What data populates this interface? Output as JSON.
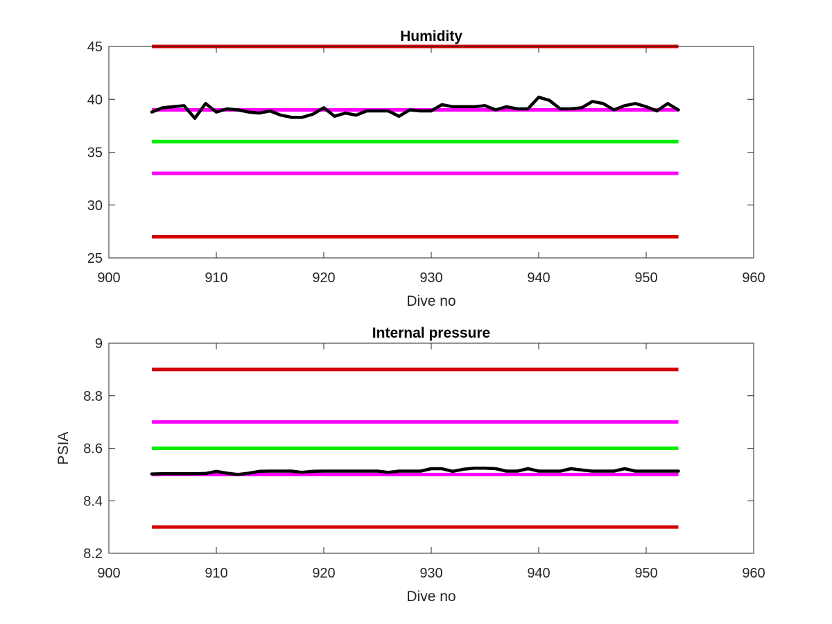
{
  "chart_data": [
    {
      "type": "line",
      "title": "Humidity",
      "xlabel": "Dive no",
      "ylabel": "",
      "xlim": [
        900,
        960
      ],
      "ylim": [
        25,
        45
      ],
      "xticks": [
        900,
        910,
        920,
        930,
        940,
        950,
        960
      ],
      "yticks": [
        25,
        30,
        35,
        40,
        45
      ],
      "grid": false,
      "reference_lines": [
        {
          "y": 45,
          "x": [
            904,
            953
          ],
          "color": "#d40000"
        },
        {
          "y": 39,
          "x": [
            904,
            953
          ],
          "color": "#ff00ff"
        },
        {
          "y": 36,
          "x": [
            904,
            953
          ],
          "color": "#00ee00"
        },
        {
          "y": 33,
          "x": [
            904,
            953
          ],
          "color": "#ff00ff"
        },
        {
          "y": 27,
          "x": [
            904,
            953
          ],
          "color": "#d40000"
        }
      ],
      "series": [
        {
          "color": "#000000",
          "x": [
            904,
            905,
            906,
            907,
            908,
            909,
            910,
            911,
            912,
            913,
            914,
            915,
            916,
            917,
            918,
            919,
            920,
            921,
            922,
            923,
            924,
            925,
            926,
            927,
            928,
            929,
            930,
            931,
            932,
            933,
            934,
            935,
            936,
            937,
            938,
            939,
            940,
            941,
            942,
            943,
            944,
            945,
            946,
            947,
            948,
            949,
            950,
            951,
            952,
            953
          ],
          "y": [
            38.8,
            39.2,
            39.3,
            39.4,
            38.2,
            39.6,
            38.8,
            39.1,
            39.0,
            38.8,
            38.7,
            38.9,
            38.5,
            38.3,
            38.3,
            38.6,
            39.2,
            38.4,
            38.7,
            38.5,
            38.9,
            38.9,
            38.9,
            38.4,
            39.0,
            38.9,
            38.9,
            39.5,
            39.3,
            39.3,
            39.3,
            39.4,
            39.0,
            39.3,
            39.1,
            39.1,
            40.2,
            39.9,
            39.1,
            39.1,
            39.2,
            39.8,
            39.6,
            39.0,
            39.4,
            39.6,
            39.3,
            38.9,
            39.6,
            39.0
          ]
        }
      ]
    },
    {
      "type": "line",
      "title": "Internal pressure",
      "xlabel": "Dive no",
      "ylabel": "PSIA",
      "xlim": [
        900,
        960
      ],
      "ylim": [
        8.2,
        9
      ],
      "xticks": [
        900,
        910,
        920,
        930,
        940,
        950,
        960
      ],
      "yticks": [
        8.2,
        8.4,
        8.6,
        8.8,
        9
      ],
      "grid": false,
      "reference_lines": [
        {
          "y": 8.9,
          "x": [
            904,
            953
          ],
          "color": "#d40000"
        },
        {
          "y": 8.7,
          "x": [
            904,
            953
          ],
          "color": "#ff00ff"
        },
        {
          "y": 8.6,
          "x": [
            904,
            953
          ],
          "color": "#00ee00"
        },
        {
          "y": 8.5,
          "x": [
            904,
            953
          ],
          "color": "#ff00ff"
        },
        {
          "y": 8.3,
          "x": [
            904,
            953
          ],
          "color": "#d40000"
        }
      ],
      "series": [
        {
          "color": "#000000",
          "x": [
            904,
            905,
            906,
            907,
            908,
            909,
            910,
            911,
            912,
            913,
            914,
            915,
            916,
            917,
            918,
            919,
            920,
            921,
            922,
            923,
            924,
            925,
            926,
            927,
            928,
            929,
            930,
            931,
            932,
            933,
            934,
            935,
            936,
            937,
            938,
            939,
            940,
            941,
            942,
            943,
            944,
            945,
            946,
            947,
            948,
            949,
            950,
            951,
            952,
            953
          ],
          "y": [
            8.502,
            8.503,
            8.503,
            8.503,
            8.503,
            8.504,
            8.512,
            8.505,
            8.5,
            8.505,
            8.512,
            8.513,
            8.513,
            8.513,
            8.508,
            8.512,
            8.513,
            8.513,
            8.513,
            8.513,
            8.513,
            8.513,
            8.508,
            8.513,
            8.513,
            8.513,
            8.522,
            8.522,
            8.512,
            8.52,
            8.524,
            8.524,
            8.522,
            8.513,
            8.513,
            8.522,
            8.513,
            8.513,
            8.513,
            8.522,
            8.517,
            8.513,
            8.513,
            8.513,
            8.522,
            8.513,
            8.513,
            8.513,
            8.513,
            8.513
          ]
        }
      ]
    }
  ]
}
